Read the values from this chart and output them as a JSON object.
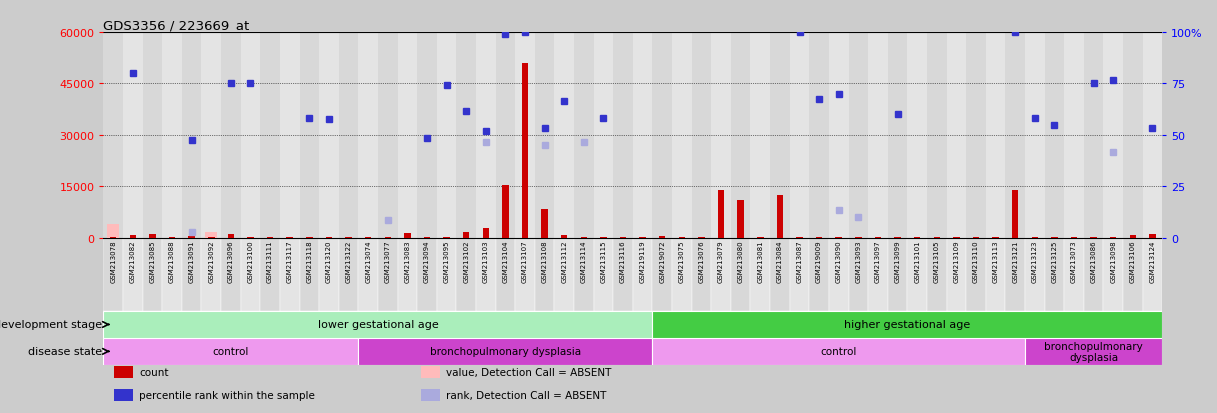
{
  "title": "GDS3356 / 223669_at",
  "samples": [
    "GSM213078",
    "GSM213082",
    "GSM213085",
    "GSM213088",
    "GSM213091",
    "GSM213092",
    "GSM213096",
    "GSM213100",
    "GSM213111",
    "GSM213117",
    "GSM213118",
    "GSM213120",
    "GSM213122",
    "GSM213074",
    "GSM213077",
    "GSM213083",
    "GSM213094",
    "GSM213095",
    "GSM213102",
    "GSM213103",
    "GSM213104",
    "GSM213107",
    "GSM213108",
    "GSM213112",
    "GSM213114",
    "GSM213115",
    "GSM213116",
    "GSM219119",
    "GSM219072",
    "GSM213075",
    "GSM213076",
    "GSM213079",
    "GSM213080",
    "GSM213081",
    "GSM213084",
    "GSM213087",
    "GSM219009",
    "GSM213090",
    "GSM213093",
    "GSM213097",
    "GSM213099",
    "GSM213101",
    "GSM213105",
    "GSM213109",
    "GSM213110",
    "GSM213113",
    "GSM213121",
    "GSM213123",
    "GSM213125",
    "GSM213073",
    "GSM213086",
    "GSM213098",
    "GSM213106",
    "GSM213124"
  ],
  "counts": [
    200,
    900,
    1000,
    150,
    350,
    150,
    1200,
    150,
    150,
    150,
    150,
    150,
    150,
    150,
    300,
    1400,
    150,
    150,
    1600,
    2800,
    15500,
    51000,
    8500,
    800,
    150,
    150,
    150,
    150,
    500,
    150,
    150,
    14000,
    11000,
    150,
    12500,
    150,
    150,
    150,
    150,
    150,
    150,
    150,
    150,
    150,
    150,
    150,
    14000,
    150,
    150,
    150,
    150,
    150,
    900,
    1200
  ],
  "percentile_ranks": [
    null,
    48000,
    null,
    null,
    28500,
    null,
    45000,
    45000,
    null,
    null,
    35000,
    34500,
    null,
    null,
    null,
    null,
    29000,
    44500,
    37000,
    31000,
    59500,
    60000,
    32000,
    40000,
    null,
    35000,
    null,
    null,
    null,
    null,
    null,
    null,
    null,
    null,
    null,
    60000,
    40500,
    42000,
    null,
    null,
    36000,
    null,
    null,
    null,
    null,
    null,
    60000,
    35000,
    33000,
    null,
    45000,
    46000,
    null,
    32000
  ],
  "absent_values": [
    4000,
    null,
    null,
    null,
    null,
    1600,
    null,
    null,
    null,
    null,
    null,
    null,
    null,
    null,
    null,
    null,
    null,
    null,
    null,
    null,
    null,
    null,
    null,
    null,
    null,
    null,
    null,
    null,
    null,
    null,
    null,
    null,
    null,
    null,
    null,
    null,
    null,
    null,
    null,
    null,
    null,
    null,
    null,
    null,
    null,
    null,
    null,
    null,
    null,
    null,
    null,
    null,
    null,
    null
  ],
  "absent_ranks": [
    null,
    null,
    null,
    null,
    1600,
    null,
    null,
    null,
    null,
    null,
    null,
    null,
    null,
    null,
    5000,
    null,
    null,
    null,
    null,
    28000,
    null,
    null,
    27000,
    null,
    28000,
    null,
    null,
    null,
    null,
    null,
    null,
    null,
    null,
    null,
    null,
    null,
    null,
    8000,
    6000,
    null,
    null,
    null,
    null,
    null,
    null,
    null,
    null,
    null,
    null,
    null,
    null,
    25000,
    null,
    null
  ],
  "ylim_left": [
    0,
    60000
  ],
  "yticks_left": [
    0,
    15000,
    30000,
    45000,
    60000
  ],
  "ytick_labels_left": [
    "0",
    "15000",
    "30000",
    "45000",
    "60000"
  ],
  "ylim_right": [
    0,
    100
  ],
  "yticks_right": [
    0,
    25,
    50,
    75,
    100
  ],
  "ytick_labels_right": [
    "0",
    "25",
    "50",
    "75",
    "100%"
  ],
  "bar_color": "#cc0000",
  "dot_color": "#3333cc",
  "absent_value_color": "#ffbbbb",
  "absent_rank_color": "#aaaadd",
  "col_colors": [
    "#d8d8d8",
    "#e4e4e4"
  ],
  "plot_bg": "#ffffff",
  "development_stage_label": "development stage",
  "development_stage_groups": [
    {
      "label": "lower gestational age",
      "start": 0,
      "end": 28,
      "color": "#aaeebb"
    },
    {
      "label": "higher gestational age",
      "start": 28,
      "end": 54,
      "color": "#44cc44"
    }
  ],
  "disease_state_label": "disease state",
  "disease_state_groups": [
    {
      "label": "control",
      "start": 0,
      "end": 13,
      "color": "#ee99ee"
    },
    {
      "label": "bronchopulmonary dysplasia",
      "start": 13,
      "end": 28,
      "color": "#cc44cc"
    },
    {
      "label": "control",
      "start": 28,
      "end": 47,
      "color": "#ee99ee"
    },
    {
      "label": "bronchopulmonary\ndysplasia",
      "start": 47,
      "end": 54,
      "color": "#cc44cc"
    }
  ],
  "legend_items": [
    {
      "label": "count",
      "color": "#cc0000"
    },
    {
      "label": "percentile rank within the sample",
      "color": "#3333cc"
    },
    {
      "label": "value, Detection Call = ABSENT",
      "color": "#ffbbbb"
    },
    {
      "label": "rank, Detection Call = ABSENT",
      "color": "#aaaadd"
    }
  ]
}
